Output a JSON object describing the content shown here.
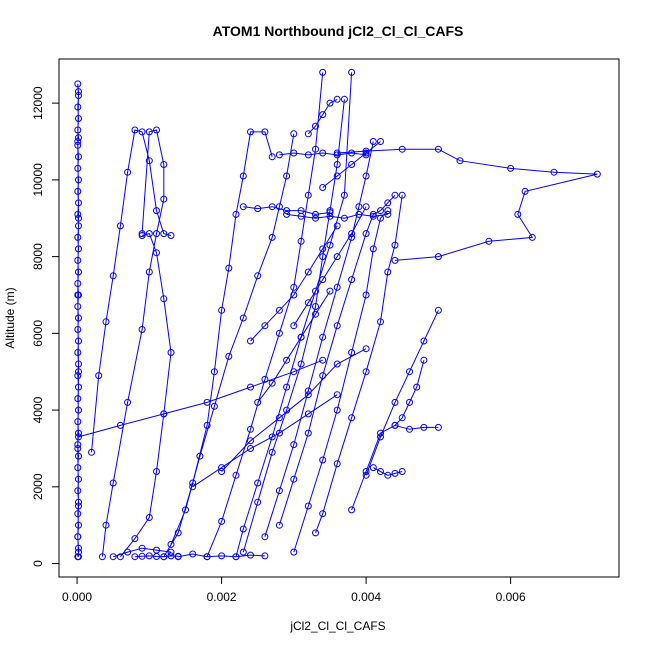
{
  "chart_data": {
    "type": "line",
    "title": "ATOM1 Northbound jCl2_Cl_Cl_CAFS",
    "xlabel": "jCl2_Cl_Cl_CAFS",
    "ylabel": "Altitude (m)",
    "xlim": [
      -0.00025,
      0.0075
    ],
    "ylim": [
      -350,
      13150
    ],
    "x_ticks": [
      0,
      0.002,
      0.004,
      0.006
    ],
    "x_tick_labels": [
      "0.000",
      "0.002",
      "0.004",
      "0.006"
    ],
    "y_ticks": [
      0,
      2000,
      4000,
      6000,
      8000,
      10000,
      12000
    ],
    "y_tick_labels": [
      "0",
      "2000",
      "4000",
      "6000",
      "8000",
      "10000",
      "12000"
    ],
    "grid": false,
    "marker": "open-circle",
    "color": "#0000ff",
    "series": [
      {
        "x": [
          2e-05,
          2e-05,
          1e-05,
          2e-05,
          1e-05,
          2e-05,
          1e-05,
          2e-05,
          1e-05,
          2e-05,
          1e-05,
          2e-05,
          1e-05,
          2e-05,
          1e-05,
          2e-05,
          1e-05,
          2e-05,
          1e-05,
          2e-05,
          1e-05,
          2e-05,
          1e-05,
          2e-05,
          1e-05,
          2e-05,
          1e-05,
          2e-05,
          1e-05,
          2e-05,
          1e-05,
          2e-05,
          1e-05,
          2e-05,
          1e-05,
          2e-05,
          1e-05,
          2e-05,
          1e-05,
          2e-05,
          1e-05,
          2e-05,
          1e-05,
          2e-05,
          1e-05,
          2e-05,
          1e-05,
          2e-05,
          1e-05,
          2e-05,
          1e-05,
          2e-05,
          1e-05
        ],
        "y": [
          180,
          400,
          700,
          1000,
          1300,
          1600,
          1900,
          2200,
          2500,
          2800,
          3100,
          3400,
          3700,
          4000,
          4300,
          4600,
          4900,
          5200,
          5500,
          5800,
          6100,
          6400,
          6700,
          7000,
          7300,
          7600,
          7900,
          8200,
          8500,
          8800,
          9100,
          9400,
          9700,
          10000,
          10300,
          10600,
          10900,
          11100,
          11300,
          11600,
          11900,
          12200,
          12500,
          12300,
          11000,
          9000,
          7000,
          5000,
          3000,
          1500,
          700,
          300,
          180
        ]
      },
      {
        "x": [
          0.00035,
          0.0004,
          0.0005,
          0.0007,
          0.0009,
          0.001,
          0.0011,
          0.0012,
          0.0012,
          0.0011,
          0.001,
          0.0009
        ],
        "y": [
          180,
          1000,
          2100,
          4200,
          6100,
          7600,
          8600,
          9500,
          10400,
          11300,
          11250,
          8600
        ]
      },
      {
        "x": [
          0.0002,
          0.0003,
          0.0004,
          0.0005,
          0.0006,
          0.0007,
          0.0008,
          0.0009,
          0.001,
          0.0011,
          0.0012,
          0.0013
        ],
        "y": [
          2900,
          4900,
          6300,
          7500,
          8800,
          10200,
          11300,
          11250,
          10500,
          9200,
          8600,
          8550
        ]
      },
      {
        "x": [
          0.0006,
          0.0008,
          0.001,
          0.0011,
          0.0012,
          0.0013,
          0.0012,
          0.0011,
          0.001,
          0.0009
        ],
        "y": [
          180,
          650,
          1200,
          2400,
          3900,
          5500,
          6900,
          8100,
          8600,
          8550
        ]
      },
      {
        "x": [
          0.0012,
          0.0014,
          0.0016,
          0.0018,
          0.0019,
          0.002,
          0.0021,
          0.0022,
          0.0023,
          0.0024,
          0.0026,
          0.0027
        ],
        "y": [
          180,
          800,
          2100,
          3600,
          5000,
          6600,
          7700,
          9100,
          10100,
          11250,
          11250,
          10600
        ]
      },
      {
        "x": [
          0.0013,
          0.0015,
          0.0017,
          0.0019,
          0.0021,
          0.0023,
          0.0025,
          0.0027,
          0.0028,
          0.0029,
          0.003
        ],
        "y": [
          500,
          1400,
          2800,
          4100,
          5400,
          6400,
          7500,
          8500,
          9300,
          10100,
          11200
        ]
      },
      {
        "x": [
          0.0018,
          0.002,
          0.0022,
          0.0024,
          0.0026,
          0.0028,
          0.003,
          0.0031,
          0.0032,
          0.0033,
          0.0034
        ],
        "y": [
          180,
          1100,
          2300,
          3500,
          4800,
          6000,
          7200,
          8400,
          9600,
          10800,
          12800
        ]
      },
      {
        "x": [
          0.0022,
          0.0023,
          0.0025,
          0.0027,
          0.0029,
          0.0031,
          0.0033,
          0.0035,
          0.0037,
          0.0038
        ],
        "y": [
          180,
          900,
          2100,
          3300,
          4600,
          5900,
          7100,
          8300,
          9600,
          12800
        ]
      },
      {
        "x": [
          0.0023,
          0.0025,
          0.0027,
          0.0029,
          0.0031,
          0.0033,
          0.0034,
          0.0035,
          0.0036,
          0.0037
        ],
        "y": [
          300,
          1600,
          2900,
          4000,
          5200,
          6700,
          8000,
          9200,
          10400,
          12100
        ]
      },
      {
        "x": [
          0.0026,
          0.0028,
          0.003,
          0.0032,
          0.0034,
          0.0036,
          0.0038,
          0.0039,
          0.004,
          0.0041
        ],
        "y": [
          700,
          1900,
          3100,
          4500,
          5900,
          7200,
          8500,
          9300,
          10100,
          11000
        ]
      },
      {
        "x": [
          0.0028,
          0.003,
          0.0032,
          0.0034,
          0.0036,
          0.0038,
          0.004,
          0.0041,
          0.0042,
          0.0043,
          0.0044
        ],
        "y": [
          1000,
          2200,
          3400,
          4900,
          6200,
          7400,
          8600,
          9100,
          9200,
          9400,
          9600
        ]
      },
      {
        "x": [
          0.003,
          0.0032,
          0.0034,
          0.0036,
          0.0038,
          0.004,
          0.0041,
          0.0042,
          0.0043
        ],
        "y": [
          300,
          1500,
          2700,
          4000,
          5500,
          7000,
          8200,
          9000,
          9200
        ]
      },
      {
        "x": [
          0.0033,
          0.0034,
          0.0036,
          0.0038,
          0.004,
          0.0042,
          0.0043,
          0.0044,
          0.0045
        ],
        "y": [
          800,
          1300,
          2600,
          3800,
          5000,
          6300,
          7600,
          8300,
          9600
        ]
      },
      {
        "x": [
          0.0038,
          0.004,
          0.0042,
          0.0044,
          0.0046,
          0.0048,
          0.005
        ],
        "y": [
          1400,
          2400,
          3400,
          3600,
          3500,
          3550,
          3550
        ]
      },
      {
        "x": [
          0.004,
          0.0042,
          0.0044,
          0.0046,
          0.0048,
          0.005
        ],
        "y": [
          2300,
          3300,
          4200,
          5000,
          5800,
          6600
        ]
      },
      {
        "x": [
          0.0041,
          0.0042,
          0.0043,
          0.0044,
          0.0045
        ],
        "y": [
          2500,
          2400,
          2300,
          2350,
          2400
        ]
      },
      {
        "x": [
          0.0044,
          0.0045,
          0.0046,
          0.0047,
          0.0048
        ],
        "y": [
          3600,
          3800,
          4200,
          4600,
          5300
        ]
      },
      {
        "x": [
          0.0036,
          0.004,
          0.0045,
          0.005,
          0.0053,
          0.006,
          0.0066,
          0.0072,
          0.0062,
          0.0061,
          0.0063,
          0.0057,
          0.005,
          0.0044
        ],
        "y": [
          10700,
          10750,
          10800,
          10800,
          10500,
          10300,
          10200,
          10150,
          9700,
          9100,
          8500,
          8400,
          8000,
          7900
        ]
      },
      {
        "x": [
          0.0029,
          0.0031,
          0.0033,
          0.0035,
          0.0037,
          0.0039,
          0.0041,
          0.0043
        ],
        "y": [
          9100,
          9050,
          9000,
          9050,
          9000,
          9100,
          9050,
          9100
        ]
      },
      {
        "x": [
          0.0023,
          0.0025,
          0.0027,
          0.0029,
          0.0031,
          0.0033,
          0.0035
        ],
        "y": [
          9300,
          9250,
          9300,
          9200,
          9200,
          9100,
          9150
        ]
      },
      {
        "x": [
          0.0028,
          0.003,
          0.0032,
          0.0034,
          0.0036,
          0.0038,
          0.004
        ],
        "y": [
          10650,
          10700,
          10650,
          10700,
          10650,
          10700,
          10650
        ]
      },
      {
        "x": [
          2e-05,
          0.0006,
          0.0012,
          0.0018,
          0.0024,
          0.003,
          0.0034
        ],
        "y": [
          3300,
          3600,
          3900,
          4200,
          4600,
          5000,
          5300
        ]
      },
      {
        "x": [
          0.002,
          0.0024,
          0.0028,
          0.0032,
          0.0036,
          0.004
        ],
        "y": [
          2400,
          3200,
          3800,
          4400,
          5200,
          5600
        ]
      },
      {
        "x": [
          0.0016,
          0.002,
          0.0024,
          0.0028,
          0.0032,
          0.0036
        ],
        "y": [
          2000,
          2500,
          3000,
          3400,
          3900,
          4400
        ]
      },
      {
        "x": [
          0.0014,
          0.0016,
          0.0018,
          0.002,
          0.0022,
          0.0024,
          0.0026
        ],
        "y": [
          180,
          250,
          180,
          200,
          180,
          220,
          200
        ]
      },
      {
        "x": [
          0.0008,
          0.0009,
          0.001,
          0.0011,
          0.0012,
          0.0013,
          0.0014
        ],
        "y": [
          180,
          190,
          200,
          185,
          180,
          200,
          190
        ]
      },
      {
        "x": [
          0.0005,
          0.0007,
          0.0009,
          0.0011,
          0.0013
        ],
        "y": [
          180,
          300,
          400,
          350,
          300
        ]
      },
      {
        "x": [
          0.0024,
          0.0026,
          0.0028,
          0.003,
          0.0032,
          0.0034,
          0.0036
        ],
        "y": [
          5800,
          6200,
          6600,
          7000,
          7600,
          8200,
          8800
        ]
      },
      {
        "x": [
          0.0025,
          0.0027,
          0.0029,
          0.0031,
          0.0033,
          0.0035
        ],
        "y": [
          4200,
          4700,
          5300,
          5900,
          6500,
          7100
        ]
      },
      {
        "x": [
          0.003,
          0.0032,
          0.0034,
          0.0036,
          0.0038,
          0.004
        ],
        "y": [
          6200,
          6800,
          7400,
          8000,
          8600,
          9300
        ]
      },
      {
        "x": [
          0.0034,
          0.0036,
          0.0038,
          0.004,
          0.0042
        ],
        "y": [
          9800,
          10100,
          10400,
          10700,
          11000
        ]
      },
      {
        "x": [
          0.0032,
          0.0033,
          0.0034,
          0.0035,
          0.0036
        ],
        "y": [
          11200,
          11400,
          11700,
          12000,
          12100
        ]
      }
    ]
  }
}
